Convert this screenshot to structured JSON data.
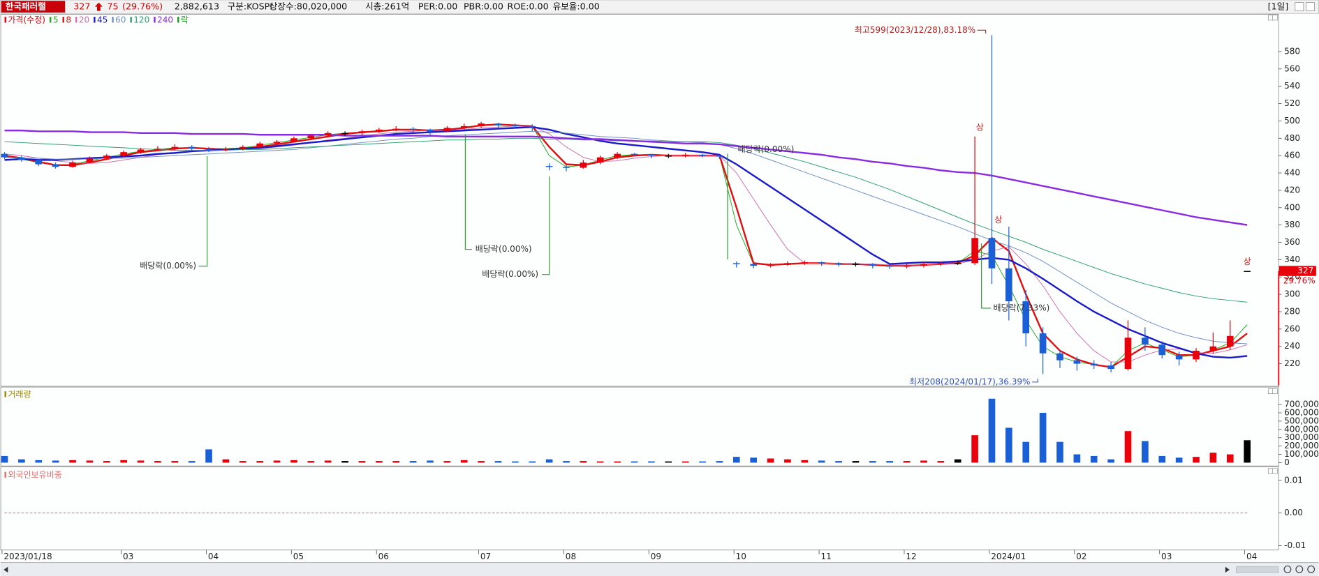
{
  "header": {
    "name": "한국패러랠",
    "price": "327",
    "change": "75",
    "change_pct": "(29.76%)",
    "volume": "2,882,613",
    "market": "구분:KOSPI",
    "shares": "상장수:80,020,000",
    "cap": "시총:261억",
    "per": "PER:0.00",
    "pbr": "PBR:0.00",
    "roe": "ROE:0.00",
    "reserve": "유보율:0.00",
    "period": "[1일]"
  },
  "chart_data": [
    {
      "type": "candlestick",
      "price_name": "가격(수정)",
      "price_color": "#e8000b",
      "down_color": "#1a5fd6",
      "flat_color": "#000000",
      "open": [
        462,
        458,
        455,
        450,
        447,
        452,
        457,
        460,
        464,
        467,
        468,
        470,
        468,
        467,
        468,
        470,
        474,
        476,
        480,
        483,
        486,
        486,
        488,
        490,
        491,
        490,
        488,
        492,
        494,
        497,
        495,
        494,
        448,
        447,
        446,
        452,
        458,
        462,
        461,
        460,
        460,
        461,
        460,
        336,
        335,
        333,
        334,
        336,
        337,
        336,
        335,
        335,
        333,
        332,
        333,
        335,
        336,
        336,
        365,
        330,
        292,
        255,
        232,
        224,
        220,
        218,
        214,
        250,
        242,
        230,
        225,
        235,
        240,
        327
      ],
      "high": [
        464,
        460,
        456,
        452,
        454,
        459,
        462,
        466,
        469,
        471,
        473,
        472,
        470,
        470,
        472,
        476,
        478,
        482,
        485,
        488,
        488,
        490,
        492,
        494,
        493,
        491,
        494,
        497,
        499,
        498,
        497,
        496,
        451,
        449,
        455,
        460,
        464,
        463,
        462,
        462,
        463,
        462,
        461,
        338,
        336,
        336,
        338,
        339,
        338,
        337,
        337,
        336,
        334,
        335,
        337,
        338,
        339,
        482,
        599,
        378,
        305,
        262,
        236,
        228,
        224,
        222,
        270,
        262,
        246,
        234,
        238,
        256,
        270,
        327
      ],
      "low": [
        456,
        453,
        448,
        445,
        446,
        451,
        455,
        458,
        462,
        465,
        466,
        465,
        464,
        465,
        466,
        469,
        472,
        475,
        478,
        481,
        483,
        484,
        486,
        488,
        487,
        484,
        487,
        490,
        492,
        492,
        491,
        488,
        443,
        442,
        445,
        450,
        456,
        459,
        457,
        457,
        458,
        458,
        456,
        331,
        330,
        331,
        333,
        334,
        333,
        332,
        332,
        330,
        329,
        330,
        331,
        333,
        334,
        334,
        312,
        270,
        240,
        208,
        215,
        212,
        214,
        210,
        212,
        235,
        226,
        218,
        222,
        232,
        236,
        327
      ],
      "close": [
        458,
        455,
        450,
        447,
        452,
        457,
        460,
        464,
        467,
        468,
        470,
        468,
        467,
        468,
        470,
        474,
        476,
        480,
        483,
        486,
        486,
        488,
        490,
        491,
        490,
        488,
        492,
        494,
        497,
        495,
        494,
        493,
        447,
        446,
        452,
        458,
        462,
        461,
        460,
        460,
        461,
        460,
        459,
        335,
        333,
        334,
        336,
        337,
        336,
        335,
        335,
        333,
        332,
        333,
        335,
        336,
        336,
        365,
        330,
        292,
        255,
        232,
        224,
        220,
        218,
        214,
        250,
        242,
        230,
        225,
        235,
        240,
        252,
        327
      ],
      "series": [
        {
          "name": "5",
          "color": "#22aa22",
          "values": [
            459,
            456,
            452,
            449,
            450,
            454,
            458,
            462,
            465,
            467,
            469,
            469,
            468,
            468,
            469,
            472,
            475,
            478,
            481,
            484,
            486,
            487,
            489,
            490,
            490,
            489,
            490,
            493,
            495,
            496,
            495,
            494,
            460,
            447,
            449,
            455,
            460,
            461,
            461,
            460,
            460,
            460,
            460,
            380,
            335,
            334,
            335,
            336,
            336,
            335,
            335,
            334,
            333,
            333,
            334,
            335,
            336,
            350,
            345,
            310,
            270,
            240,
            228,
            222,
            219,
            216,
            235,
            244,
            236,
            228,
            230,
            236,
            244,
            265
          ]
        },
        {
          "name": "8",
          "color": "#e01010",
          "values": [
            460,
            457,
            453,
            449,
            449,
            452,
            456,
            460,
            464,
            466,
            468,
            469,
            468,
            467,
            468,
            470,
            473,
            476,
            479,
            482,
            485,
            487,
            488,
            490,
            490,
            489,
            490,
            492,
            495,
            496,
            495,
            494,
            470,
            450,
            449,
            453,
            458,
            460,
            461,
            460,
            460,
            460,
            460,
            400,
            336,
            334,
            335,
            336,
            336,
            335,
            335,
            334,
            333,
            333,
            334,
            335,
            336,
            345,
            365,
            350,
            300,
            255,
            235,
            225,
            219,
            216,
            228,
            240,
            238,
            230,
            230,
            235,
            240,
            255
          ]
        },
        {
          "name": "20",
          "color": "#d070b0",
          "values": [
            462,
            460,
            457,
            454,
            452,
            451,
            452,
            455,
            458,
            461,
            463,
            465,
            466,
            467,
            467,
            468,
            470,
            472,
            475,
            478,
            480,
            483,
            485,
            487,
            488,
            489,
            489,
            490,
            492,
            493,
            494,
            494,
            485,
            470,
            458,
            453,
            454,
            457,
            459,
            460,
            460,
            460,
            460,
            440,
            410,
            380,
            352,
            336,
            336,
            336,
            335,
            335,
            334,
            334,
            334,
            335,
            335,
            340,
            350,
            355,
            335,
            310,
            280,
            255,
            235,
            222,
            222,
            230,
            236,
            237,
            233,
            232,
            236,
            242
          ]
        },
        {
          "name": "45",
          "color": "#1a1ac8",
          "values": [
            455,
            456,
            455,
            455,
            456,
            457,
            458,
            459,
            460,
            462,
            463,
            465,
            466,
            467,
            468,
            469,
            471,
            473,
            475,
            477,
            479,
            481,
            483,
            485,
            486,
            487,
            488,
            489,
            490,
            491,
            492,
            493,
            490,
            485,
            481,
            477,
            474,
            472,
            470,
            468,
            466,
            464,
            461,
            450,
            437,
            424,
            411,
            398,
            385,
            372,
            359,
            346,
            335,
            336,
            337,
            337,
            338,
            340,
            342,
            340,
            330,
            318,
            305,
            292,
            280,
            270,
            260,
            252,
            244,
            238,
            232,
            228,
            227,
            229
          ]
        },
        {
          "name": "60",
          "color": "#7090c0",
          "values": [
            458,
            457,
            457,
            456,
            456,
            456,
            457,
            457,
            458,
            459,
            460,
            461,
            462,
            463,
            464,
            465,
            466,
            467,
            469,
            471,
            473,
            475,
            477,
            479,
            480,
            482,
            483,
            484,
            485,
            486,
            487,
            488,
            487,
            486,
            484,
            482,
            481,
            480,
            478,
            477,
            476,
            475,
            473,
            468,
            462,
            455,
            448,
            441,
            434,
            427,
            420,
            413,
            406,
            399,
            392,
            385,
            378,
            370,
            362,
            356,
            348,
            338,
            326,
            314,
            302,
            290,
            280,
            270,
            262,
            255,
            250,
            246,
            244,
            243
          ]
        },
        {
          "name": "120",
          "color": "#30a070",
          "values": [
            476,
            475,
            474,
            473,
            472,
            471,
            470,
            469,
            468,
            467,
            466,
            466,
            466,
            466,
            467,
            467,
            468,
            469,
            470,
            471,
            472,
            473,
            474,
            475,
            476,
            477,
            478,
            478,
            479,
            479,
            480,
            480,
            479,
            479,
            478,
            478,
            477,
            477,
            477,
            476,
            476,
            476,
            475,
            472,
            468,
            463,
            458,
            453,
            447,
            441,
            435,
            428,
            421,
            413,
            405,
            397,
            389,
            381,
            374,
            367,
            360,
            352,
            345,
            338,
            331,
            324,
            318,
            312,
            307,
            302,
            298,
            295,
            293,
            291
          ]
        },
        {
          "name": "240",
          "color": "#8a2be2",
          "values": [
            489,
            489,
            488,
            488,
            488,
            487,
            487,
            487,
            486,
            486,
            486,
            485,
            485,
            485,
            485,
            484,
            484,
            484,
            484,
            484,
            483,
            483,
            483,
            483,
            483,
            483,
            482,
            482,
            482,
            482,
            482,
            482,
            481,
            480,
            479,
            479,
            478,
            477,
            476,
            475,
            474,
            474,
            473,
            471,
            469,
            467,
            465,
            463,
            461,
            458,
            456,
            453,
            451,
            448,
            446,
            443,
            441,
            440,
            437,
            433,
            429,
            425,
            421,
            417,
            413,
            409,
            405,
            401,
            397,
            393,
            389,
            386,
            383,
            380
          ]
        }
      ],
      "dividend_legend": {
        "name": "락",
        "color": "#1a9a1a"
      },
      "annotations": [
        "최고599(2023/12/28),83.18%",
        "최저208(2024/01/17),36.39%",
        "배당락(0.00%)",
        "배당락(0.00%)",
        "배당락(0.00%)",
        "배당락(0.00%)",
        "배당락(7.33%)",
        "상",
        "상",
        "상"
      ],
      "last_change": "29.76%",
      "ylim": [
        195,
        623
      ],
      "yticks": [
        220,
        240,
        260,
        280,
        300,
        320,
        340,
        360,
        380,
        400,
        420,
        440,
        460,
        480,
        500,
        520,
        540,
        560,
        580
      ],
      "grid": false
    },
    {
      "type": "bar",
      "name": "거래량",
      "name_color": "#9a8a00",
      "values": [
        80000,
        40000,
        30000,
        25000,
        30000,
        25000,
        20000,
        30000,
        25000,
        20000,
        20000,
        20000,
        160000,
        40000,
        20000,
        20000,
        25000,
        30000,
        20000,
        25000,
        20000,
        20000,
        20000,
        20000,
        20000,
        25000,
        20000,
        30000,
        20000,
        20000,
        15000,
        15000,
        40000,
        20000,
        20000,
        15000,
        15000,
        15000,
        15000,
        15000,
        15000,
        15000,
        20000,
        70000,
        60000,
        50000,
        40000,
        30000,
        25000,
        20000,
        20000,
        20000,
        20000,
        20000,
        25000,
        20000,
        40000,
        330000,
        770000,
        420000,
        250000,
        600000,
        250000,
        100000,
        80000,
        40000,
        380000,
        260000,
        80000,
        60000,
        70000,
        120000,
        100000,
        270000
      ],
      "ylim": [
        0,
        890000
      ],
      "yticks": [
        0,
        {
          "value": 100000,
          "label": "100,000"
        },
        {
          "value": 200000,
          "label": "200,000"
        },
        {
          "value": 300000,
          "label": "300,000"
        },
        {
          "value": 400000,
          "label": "400,000"
        },
        {
          "value": 500000,
          "label": "500,000"
        },
        {
          "value": 600000,
          "label": "600,000"
        },
        {
          "value": 700000,
          "label": "700,000"
        }
      ],
      "grid": false
    },
    {
      "type": "line",
      "name": "외국인보유비중",
      "name_color": "#e07070",
      "color": "#e05050",
      "dashed": true,
      "values": [
        0,
        0,
        0,
        0,
        0,
        0,
        0,
        0,
        0,
        0,
        0,
        0,
        0,
        0,
        0,
        0,
        0,
        0,
        0,
        0,
        0,
        0,
        0,
        0,
        0,
        0,
        0,
        0,
        0,
        0,
        0,
        0,
        0,
        0,
        0,
        0,
        0,
        0,
        0,
        0,
        0,
        0,
        0,
        0,
        0,
        0,
        0,
        0,
        0,
        0,
        0,
        0,
        0,
        0,
        0,
        0,
        0,
        0,
        0,
        0,
        0,
        0,
        0,
        0,
        0,
        0,
        0,
        0,
        0,
        0,
        0,
        0,
        0,
        0
      ],
      "categories": [
        "2023/01/18",
        null,
        null,
        null,
        null,
        null,
        null,
        "03",
        null,
        null,
        null,
        null,
        "04",
        null,
        null,
        null,
        null,
        "05",
        null,
        null,
        null,
        null,
        "06",
        null,
        null,
        null,
        null,
        null,
        "07",
        null,
        null,
        null,
        null,
        "08",
        null,
        null,
        null,
        null,
        "09",
        null,
        null,
        null,
        null,
        "10",
        null,
        null,
        null,
        null,
        "11",
        null,
        null,
        null,
        null,
        "12",
        null,
        null,
        null,
        null,
        "2024/01",
        null,
        null,
        null,
        null,
        "02",
        null,
        null,
        null,
        null,
        "03",
        null,
        null,
        null,
        null,
        "04"
      ],
      "ylim": [
        -0.0113,
        0.0136
      ],
      "yticks": [
        0.01,
        {
          "value": 0,
          "label": "0.00"
        },
        -0.01
      ],
      "grid": false
    }
  ]
}
